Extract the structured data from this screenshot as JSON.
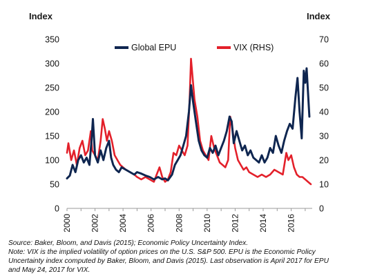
{
  "chart_data": {
    "type": "line",
    "left_axis_title": "Index",
    "right_axis_title": "Index",
    "left_ylim": [
      0,
      350
    ],
    "left_ticks": [
      "0",
      "50",
      "100",
      "150",
      "200",
      "250",
      "300",
      "350"
    ],
    "right_ylim": [
      0,
      70
    ],
    "right_ticks": [
      "0",
      "10",
      "20",
      "30",
      "40",
      "50",
      "60",
      "70"
    ],
    "xlim": [
      2000,
      2017.5
    ],
    "x_ticks": [
      "2000",
      "2002",
      "2004",
      "2006",
      "2008",
      "2010",
      "2012",
      "2014",
      "2016"
    ],
    "grid": false,
    "legend_position": "top-center",
    "series": [
      {
        "name": "Global EPU",
        "axis": "left",
        "color": "#0f2650",
        "x": [
          2000.0,
          2000.2,
          2000.4,
          2000.6,
          2000.8,
          2001.0,
          2001.2,
          2001.4,
          2001.6,
          2001.75,
          2001.85,
          2002.0,
          2002.2,
          2002.4,
          2002.6,
          2002.8,
          2003.0,
          2003.15,
          2003.3,
          2003.5,
          2003.7,
          2003.9,
          2004.2,
          2004.5,
          2004.8,
          2005.0,
          2005.3,
          2005.6,
          2005.9,
          2006.2,
          2006.5,
          2006.8,
          2007.0,
          2007.2,
          2007.5,
          2007.7,
          2007.9,
          2008.1,
          2008.3,
          2008.5,
          2008.7,
          2008.85,
          2009.0,
          2009.2,
          2009.4,
          2009.6,
          2009.8,
          2010.0,
          2010.2,
          2010.4,
          2010.6,
          2010.8,
          2011.0,
          2011.2,
          2011.4,
          2011.6,
          2011.75,
          2011.9,
          2012.1,
          2012.3,
          2012.5,
          2012.7,
          2012.9,
          2013.1,
          2013.3,
          2013.5,
          2013.7,
          2013.9,
          2014.1,
          2014.3,
          2014.5,
          2014.7,
          2014.9,
          2015.1,
          2015.3,
          2015.5,
          2015.7,
          2015.9,
          2016.1,
          2016.3,
          2016.45,
          2016.6,
          2016.75,
          2016.9,
          2017.0,
          2017.1,
          2017.2,
          2017.3
        ],
        "values": [
          62,
          68,
          90,
          75,
          100,
          110,
          95,
          105,
          90,
          140,
          185,
          110,
          95,
          120,
          100,
          125,
          140,
          105,
          90,
          80,
          75,
          85,
          80,
          75,
          70,
          75,
          72,
          68,
          65,
          60,
          65,
          60,
          62,
          58,
          70,
          90,
          100,
          110,
          130,
          150,
          200,
          255,
          220,
          180,
          140,
          120,
          110,
          105,
          125,
          115,
          130,
          110,
          125,
          140,
          160,
          190,
          180,
          135,
          160,
          140,
          120,
          130,
          110,
          120,
          105,
          100,
          95,
          110,
          95,
          105,
          125,
          115,
          150,
          130,
          115,
          140,
          160,
          175,
          165,
          230,
          270,
          200,
          145,
          285,
          260,
          290,
          240,
          190
        ]
      },
      {
        "name": "VIX (RHS)",
        "axis": "right",
        "color": "#e3202a",
        "x": [
          2000.0,
          2000.1,
          2000.3,
          2000.5,
          2000.7,
          2000.9,
          2001.1,
          2001.3,
          2001.5,
          2001.7,
          2001.8,
          2002.0,
          2002.2,
          2002.4,
          2002.55,
          2002.7,
          2002.85,
          2003.0,
          2003.2,
          2003.4,
          2003.6,
          2003.8,
          2004.0,
          2004.2,
          2004.5,
          2004.8,
          2005.0,
          2005.3,
          2005.6,
          2005.9,
          2006.2,
          2006.4,
          2006.6,
          2006.8,
          2007.0,
          2007.2,
          2007.4,
          2007.6,
          2007.8,
          2008.0,
          2008.2,
          2008.4,
          2008.6,
          2008.75,
          2008.85,
          2008.95,
          2009.1,
          2009.3,
          2009.5,
          2009.7,
          2009.9,
          2010.1,
          2010.3,
          2010.5,
          2010.7,
          2010.9,
          2011.1,
          2011.3,
          2011.5,
          2011.65,
          2011.8,
          2012.0,
          2012.2,
          2012.4,
          2012.6,
          2012.8,
          2013.0,
          2013.3,
          2013.6,
          2013.9,
          2014.2,
          2014.5,
          2014.8,
          2015.1,
          2015.4,
          2015.65,
          2015.8,
          2016.0,
          2016.2,
          2016.4,
          2016.6,
          2016.8,
          2017.0,
          2017.2,
          2017.4
        ],
        "values": [
          23,
          27,
          20,
          24,
          18,
          25,
          28,
          22,
          24,
          32,
          24,
          22,
          20,
          28,
          37,
          33,
          28,
          32,
          28,
          22,
          20,
          18,
          17,
          16,
          15,
          14,
          13,
          12,
          13,
          12,
          11,
          14,
          17,
          13,
          11,
          12,
          15,
          23,
          22,
          26,
          24,
          22,
          26,
          45,
          62,
          55,
          45,
          38,
          28,
          24,
          22,
          20,
          30,
          25,
          22,
          19,
          18,
          17,
          20,
          38,
          33,
          25,
          20,
          18,
          16,
          17,
          15,
          14,
          13,
          14,
          13,
          14,
          16,
          15,
          14,
          23,
          20,
          22,
          17,
          14,
          13,
          13,
          12,
          11,
          10
        ]
      }
    ]
  },
  "notes": {
    "source": "Source: Baker, Bloom, and Davis (2015); Economic Policy Uncertainty Index.",
    "note_line1": "Note: VIX is the implied volatility of option prices on the U.S. S&P 500. EPU is the Economic Policy",
    "note_line2": "Uncertainty index computed by Baker, Bloom, and Davis (2015). Last observation is April 2017 for EPU",
    "note_line3": " and May 24, 2017 for VIX."
  }
}
